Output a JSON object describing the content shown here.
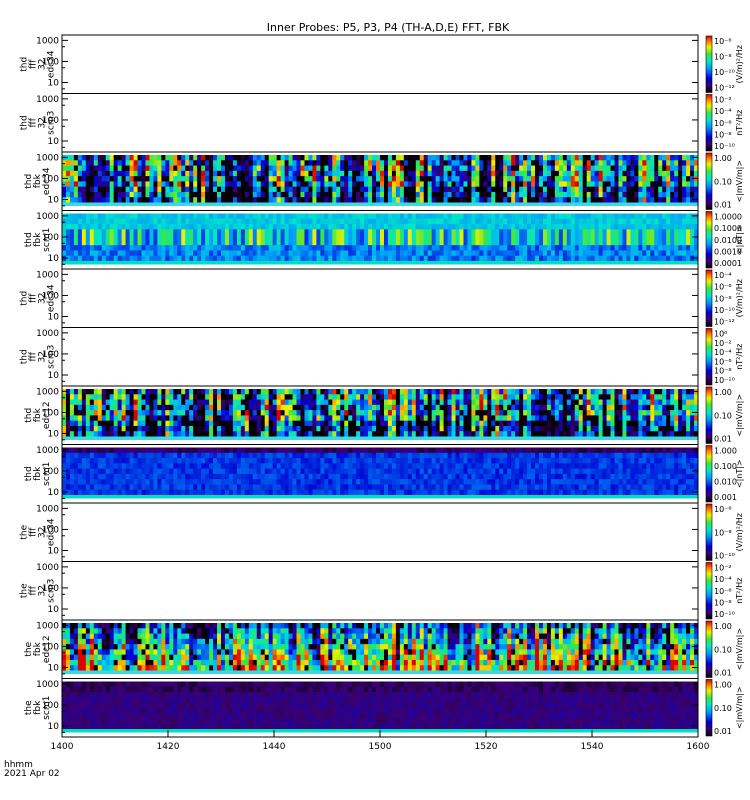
{
  "chart_data": {
    "type": "heatmap",
    "title": "Inner Probes: P5, P3, P4 (TH-A,D,E) FFT, FBK",
    "x_ticks": [
      "1400",
      "1420",
      "1440",
      "1500",
      "1520",
      "1540",
      "1600"
    ],
    "x_range": [
      "1400",
      "1600"
    ],
    "y_ticks": [
      "10",
      "100",
      "1000"
    ],
    "y_scale": "log",
    "footer": {
      "time_label": "hhmm",
      "date_label": "2021 Apr 02"
    },
    "panels": [
      {
        "label": [
          "thd",
          "fff",
          "32",
          "edc34"
        ],
        "has_data": false,
        "cbar_label": "(V/m)²/Hz",
        "cbar_ticks": [
          "10⁻⁶",
          "10⁻⁸",
          "10⁻¹⁰",
          "10⁻¹²"
        ]
      },
      {
        "label": [
          "thd",
          "fff",
          "32",
          "scm3"
        ],
        "has_data": false,
        "cbar_label": "nT²/Hz",
        "cbar_ticks": [
          "10⁻²",
          "10⁻⁴",
          "10⁻⁶",
          "10⁻⁸",
          "10⁻¹⁰"
        ]
      },
      {
        "label": [
          "thd",
          "fbk",
          "edc34"
        ],
        "has_data": true,
        "pattern": "edc",
        "cbar_label": "<|mV/m|>",
        "cbar_ticks": [
          "1.00",
          "0.10",
          "0.01"
        ]
      },
      {
        "label": [
          "thd",
          "fbk",
          "scm1"
        ],
        "has_data": true,
        "pattern": "scm_d",
        "cbar_label": "<|nT|>",
        "cbar_ticks": [
          "1.0000",
          "0.1000",
          "0.0100",
          "0.0010",
          "0.0001"
        ]
      },
      {
        "label": [
          "thd",
          "fff",
          "32",
          "edc34"
        ],
        "has_data": false,
        "cbar_label": "(V/m)²/Hz",
        "cbar_ticks": [
          "10⁻⁴",
          "10⁻⁶",
          "10⁻⁸",
          "10⁻¹⁰",
          "10⁻¹²"
        ]
      },
      {
        "label": [
          "thd",
          "fff",
          "32",
          "scm3"
        ],
        "has_data": false,
        "cbar_label": "nT²/Hz",
        "cbar_ticks": [
          "10⁰",
          "10⁻²",
          "10⁻⁴",
          "10⁻⁶",
          "10⁻⁸",
          "10⁻¹⁰"
        ]
      },
      {
        "label": [
          "thd",
          "fbk",
          "edc12"
        ],
        "has_data": true,
        "pattern": "edc",
        "cbar_label": "<|mV/m|>",
        "cbar_ticks": [
          "1.00",
          "0.10",
          "0.01"
        ]
      },
      {
        "label": [
          "thd",
          "fbk",
          "scm1"
        ],
        "has_data": true,
        "pattern": "scm_blue",
        "cbar_label": "<|nT|>",
        "cbar_ticks": [
          "1.000",
          "0.100",
          "0.010",
          "0.001"
        ]
      },
      {
        "label": [
          "the",
          "fff",
          "32",
          "edc34"
        ],
        "has_data": false,
        "cbar_label": "(V/m)²/Hz",
        "cbar_ticks": [
          "10⁻⁶",
          "10⁻⁸",
          "10⁻¹⁰"
        ]
      },
      {
        "label": [
          "the",
          "fff",
          "32",
          "scm3"
        ],
        "has_data": false,
        "cbar_label": "nT²/Hz",
        "cbar_ticks": [
          "10⁻²",
          "10⁻⁴",
          "10⁻⁶",
          "10⁻⁸",
          "10⁻¹⁰"
        ]
      },
      {
        "label": [
          "the",
          "fbk",
          "edc12"
        ],
        "has_data": true,
        "pattern": "edc_warm",
        "cbar_label": "<|mV/m|>",
        "cbar_ticks": [
          "1.00",
          "0.10",
          "0.01"
        ]
      },
      {
        "label": [
          "the",
          "fbk",
          "scm1"
        ],
        "has_data": true,
        "pattern": "scm_dark",
        "cbar_label": "<|mV/m|>",
        "cbar_ticks": [
          "1.00",
          "0.10",
          "0.01"
        ]
      }
    ]
  }
}
